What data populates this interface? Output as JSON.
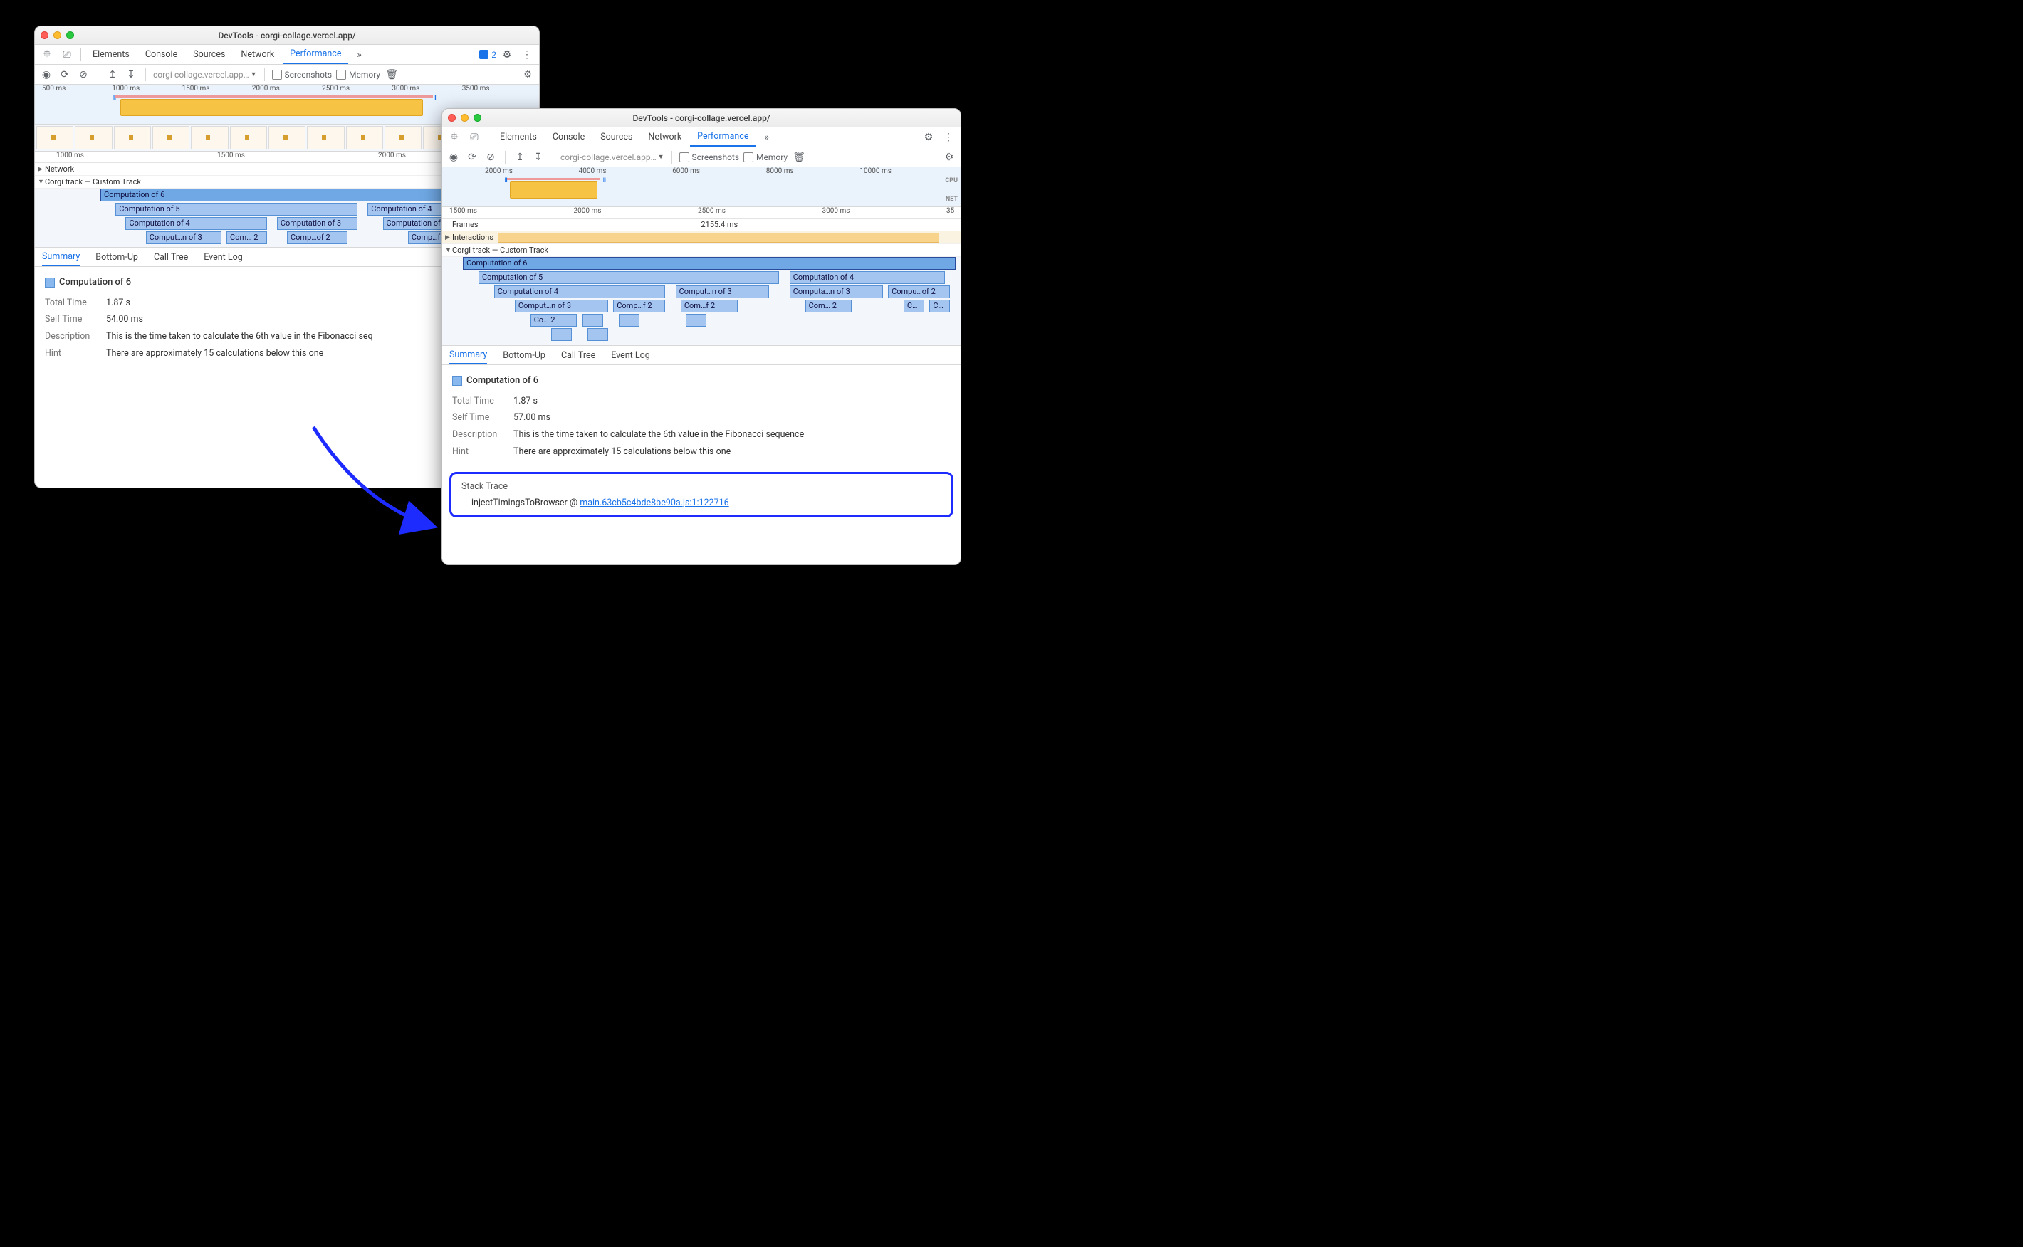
{
  "left": {
    "title": "DevTools - corgi-collage.vercel.app/",
    "tabs": [
      "Elements",
      "Console",
      "Sources",
      "Network",
      "Performance"
    ],
    "active_tab": "Performance",
    "badge_count": "2",
    "url_selector": "corgi-collage.vercel.app…",
    "checkboxes": [
      "Screenshots",
      "Memory"
    ],
    "overview_ticks": [
      "500 ms",
      "1000 ms",
      "1500 ms",
      "2000 ms",
      "2500 ms",
      "3000 ms",
      "3500 ms"
    ],
    "ruler_ticks": [
      "1000 ms",
      "1500 ms",
      "2000 ms"
    ],
    "track_network": "Network",
    "track_custom": "Corgi track — Custom Track",
    "flame": {
      "rows": [
        [
          {
            "l": "13",
            "w": "87",
            "t": "Computation of 6",
            "sel": true
          }
        ],
        [
          {
            "l": "16",
            "w": "48",
            "t": "Computation of 5"
          },
          {
            "l": "66",
            "w": "22",
            "t": "Computation of 4"
          }
        ],
        [
          {
            "l": "18",
            "w": "28",
            "t": "Computation of 4"
          },
          {
            "l": "48",
            "w": "16",
            "t": "Computation of 3"
          },
          {
            "l": "69",
            "w": "18",
            "t": "Computation of 3"
          }
        ],
        [
          {
            "l": "22",
            "w": "15",
            "t": "Comput…n of 3"
          },
          {
            "l": "38",
            "w": "8",
            "t": "Com… 2"
          },
          {
            "l": "50",
            "w": "12",
            "t": "Comp…of 2"
          },
          {
            "l": "74",
            "w": "10",
            "t": "Comp…f 2"
          }
        ]
      ]
    },
    "subtabs": [
      "Summary",
      "Bottom-Up",
      "Call Tree",
      "Event Log"
    ],
    "summary": {
      "heading": "Computation of 6",
      "total_time_k": "Total Time",
      "total_time_v": "1.87 s",
      "self_time_k": "Self Time",
      "self_time_v": "54.00 ms",
      "desc_k": "Description",
      "desc_v": "This is the time taken to calculate the 6th value in the Fibonacci seq",
      "hint_k": "Hint",
      "hint_v": "There are approximately 15 calculations below this one"
    }
  },
  "right": {
    "title": "DevTools - corgi-collage.vercel.app/",
    "tabs": [
      "Elements",
      "Console",
      "Sources",
      "Network",
      "Performance"
    ],
    "active_tab": "Performance",
    "url_selector": "corgi-collage.vercel.app…",
    "checkboxes": [
      "Screenshots",
      "Memory"
    ],
    "overview_ticks": [
      "2000 ms",
      "4000 ms",
      "6000 ms",
      "8000 ms",
      "10000 ms"
    ],
    "overview_right_labels": {
      "cpu": "CPU",
      "net": "NET"
    },
    "ruler_ticks": [
      "1500 ms",
      "2000 ms",
      "2500 ms",
      "3000 ms",
      "35"
    ],
    "frames_label": "Frames",
    "frames_value": "2155.4 ms",
    "interactions_label": "Interactions",
    "track_custom": "Corgi track — Custom Track",
    "flame": {
      "rows": [
        [
          {
            "l": "4",
            "w": "95",
            "t": "Computation of 6",
            "sel": true
          }
        ],
        [
          {
            "l": "7",
            "w": "58",
            "t": "Computation of 5"
          },
          {
            "l": "67",
            "w": "30",
            "t": "Computation of 4"
          }
        ],
        [
          {
            "l": "10",
            "w": "33",
            "t": "Computation of 4"
          },
          {
            "l": "45",
            "w": "18",
            "t": "Comput…n of 3"
          },
          {
            "l": "67",
            "w": "18",
            "t": "Computa…n of 3"
          },
          {
            "l": "86",
            "w": "12",
            "t": "Compu…of 2"
          }
        ],
        [
          {
            "l": "14",
            "w": "18",
            "t": "Comput…n of 3"
          },
          {
            "l": "33",
            "w": "10",
            "t": "Comp…f 2"
          },
          {
            "l": "46",
            "w": "11",
            "t": "Com…f 2"
          },
          {
            "l": "70",
            "w": "9",
            "t": "Com… 2"
          },
          {
            "l": "89",
            "w": "4",
            "t": "C…"
          },
          {
            "l": "94",
            "w": "4",
            "t": "C…"
          }
        ],
        [
          {
            "l": "17",
            "w": "9",
            "t": "Co… 2"
          },
          {
            "l": "27",
            "w": "4",
            "t": ""
          },
          {
            "l": "34",
            "w": "4",
            "t": ""
          },
          {
            "l": "47",
            "w": "4",
            "t": ""
          }
        ],
        [
          {
            "l": "21",
            "w": "4",
            "t": ""
          },
          {
            "l": "28",
            "w": "4",
            "t": ""
          }
        ]
      ]
    },
    "subtabs": [
      "Summary",
      "Bottom-Up",
      "Call Tree",
      "Event Log"
    ],
    "summary": {
      "heading": "Computation of 6",
      "total_time_k": "Total Time",
      "total_time_v": "1.87 s",
      "self_time_k": "Self Time",
      "self_time_v": "57.00 ms",
      "desc_k": "Description",
      "desc_v": "This is the time taken to calculate the 6th value in the Fibonacci sequence",
      "hint_k": "Hint",
      "hint_v": "There are approximately 15 calculations below this one"
    },
    "stack": {
      "header": "Stack Trace",
      "fn": "injectTimingsToBrowser",
      "at": "@",
      "link": "main.63cb5c4bde8be90a.js:1:122716"
    }
  },
  "colors": {
    "accent": "#1a73e8",
    "flame_border": "#5690d5",
    "flame_fill": "#a3c5ef",
    "flame_sel": "#6fa8e4",
    "arrow": "#1d2bff"
  }
}
